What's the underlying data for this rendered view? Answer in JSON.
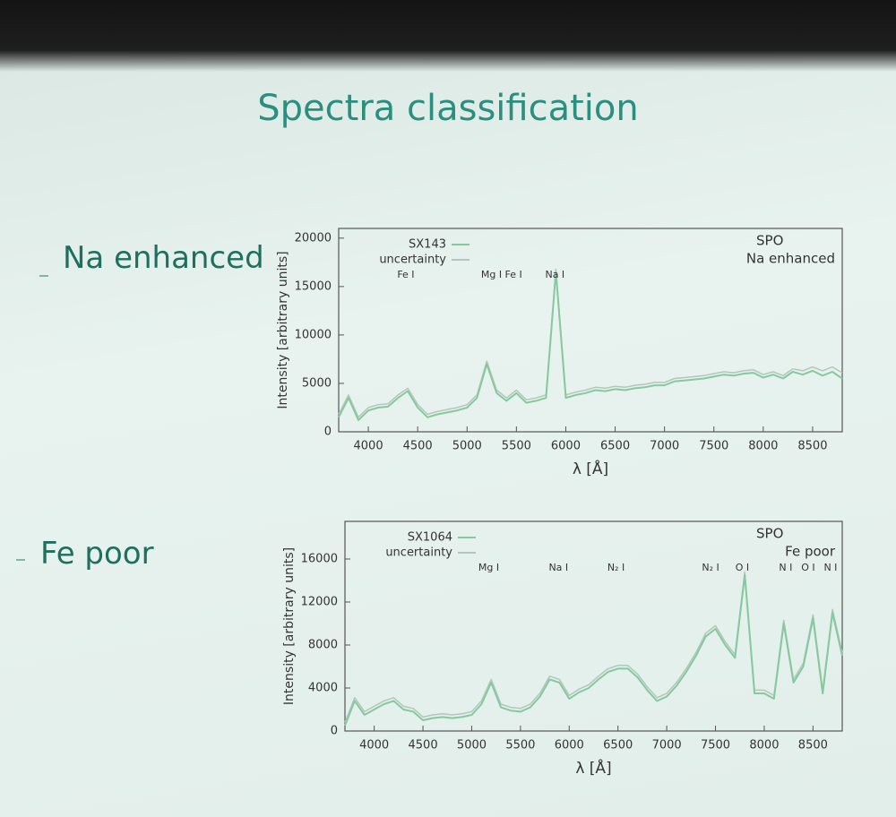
{
  "title": "Spectra classification",
  "bullets": [
    "Na enhanced",
    "Fe poor"
  ],
  "chart_data": [
    {
      "type": "line",
      "xlabel": "λ [Å]",
      "ylabel": "Intensity [arbitrary units]",
      "annotations": [
        "SPO",
        "Na enhanced"
      ],
      "line_labels": [
        {
          "text": "Fe I",
          "x": 4380
        },
        {
          "text": "Mg I Fe I",
          "x": 5350
        },
        {
          "text": "Na I",
          "x": 5890
        }
      ],
      "legend": "upper left",
      "xlim": [
        3700,
        8800
      ],
      "xticks": [
        4000,
        4500,
        5000,
        5500,
        6000,
        6500,
        7000,
        7500,
        8000,
        8500
      ],
      "ylim": [
        0,
        21000
      ],
      "yticks": [
        0,
        5000,
        10000,
        15000,
        20000
      ],
      "x": [
        3700,
        3800,
        3900,
        4000,
        4100,
        4200,
        4300,
        4400,
        4500,
        4600,
        4700,
        4800,
        4900,
        5000,
        5100,
        5200,
        5300,
        5400,
        5500,
        5600,
        5700,
        5800,
        5900,
        6000,
        6100,
        6200,
        6300,
        6400,
        6500,
        6600,
        6700,
        6800,
        6900,
        7000,
        7100,
        7200,
        7300,
        7400,
        7500,
        7600,
        7700,
        7800,
        7900,
        8000,
        8100,
        8200,
        8300,
        8400,
        8500,
        8600,
        8700,
        8800
      ],
      "series": [
        {
          "name": "SX143",
          "color": "#86c9a0",
          "values": [
            1500,
            3500,
            1200,
            2200,
            2500,
            2600,
            3500,
            4200,
            2500,
            1500,
            1800,
            2000,
            2200,
            2500,
            3500,
            7000,
            4000,
            3200,
            4000,
            3000,
            3200,
            3500,
            16500,
            3500,
            3800,
            4000,
            4300,
            4200,
            4400,
            4300,
            4500,
            4600,
            4800,
            4800,
            5200,
            5300,
            5400,
            5500,
            5700,
            5900,
            5800,
            6000,
            6100,
            5600,
            5900,
            5500,
            6200,
            5900,
            6300,
            5800,
            6200,
            5500
          ]
        },
        {
          "name": "uncertainty",
          "color": "#b3c6bb",
          "values": [
            1800,
            3800,
            1500,
            2500,
            2800,
            2900,
            3800,
            4500,
            2800,
            1800,
            2100,
            2300,
            2500,
            2800,
            3800,
            7300,
            4300,
            3500,
            4300,
            3300,
            3500,
            3800,
            16800,
            3800,
            4100,
            4300,
            4600,
            4500,
            4700,
            4600,
            4800,
            4900,
            5100,
            5100,
            5500,
            5600,
            5700,
            5800,
            6000,
            6200,
            6100,
            6300,
            6400,
            5900,
            6200,
            5800,
            6500,
            6300,
            6700,
            6300,
            6700,
            6100
          ]
        }
      ]
    },
    {
      "type": "line",
      "xlabel": "λ [Å]",
      "ylabel": "Intensity [arbitrary units]",
      "annotations": [
        "SPO",
        "Fe poor"
      ],
      "line_labels": [
        {
          "text": "Mg I",
          "x": 5175
        },
        {
          "text": "Na I",
          "x": 5890
        },
        {
          "text": "N₂ I",
          "x": 6480
        },
        {
          "text": "N₂ I",
          "x": 7450
        },
        {
          "text": "O I",
          "x": 7775
        },
        {
          "text": "N I",
          "x": 8220
        },
        {
          "text": "O I",
          "x": 8450
        },
        {
          "text": "N I",
          "x": 8680
        }
      ],
      "legend": "upper left",
      "xlim": [
        3700,
        8800
      ],
      "xticks": [
        4000,
        4500,
        5000,
        5500,
        6000,
        6500,
        7000,
        7500,
        8000,
        8500
      ],
      "ylim": [
        0,
        19500
      ],
      "yticks": [
        0,
        4000,
        8000,
        12000,
        16000
      ],
      "x": [
        3700,
        3800,
        3900,
        4000,
        4100,
        4200,
        4300,
        4400,
        4500,
        4600,
        4700,
        4800,
        4900,
        5000,
        5100,
        5200,
        5300,
        5400,
        5500,
        5600,
        5700,
        5800,
        5900,
        6000,
        6100,
        6200,
        6300,
        6400,
        6500,
        6600,
        6700,
        6800,
        6900,
        7000,
        7100,
        7200,
        7300,
        7400,
        7500,
        7600,
        7700,
        7800,
        7900,
        8000,
        8100,
        8200,
        8300,
        8400,
        8500,
        8600,
        8700,
        8800
      ],
      "series": [
        {
          "name": "SX1064",
          "color": "#86c9a0",
          "values": [
            500,
            2800,
            1500,
            2000,
            2500,
            2800,
            2000,
            1800,
            1000,
            1200,
            1300,
            1200,
            1300,
            1500,
            2500,
            4500,
            2200,
            1900,
            1800,
            2200,
            3200,
            4800,
            4500,
            3000,
            3600,
            4000,
            4800,
            5500,
            5800,
            5800,
            5000,
            3800,
            2800,
            3200,
            4200,
            5500,
            7000,
            8800,
            9500,
            8000,
            6800,
            14500,
            3500,
            3500,
            3000,
            10000,
            4500,
            6000,
            10500,
            3500,
            11000,
            7000
          ]
        },
        {
          "name": "uncertainty",
          "color": "#b3c6bb",
          "values": [
            800,
            3100,
            1800,
            2300,
            2800,
            3100,
            2300,
            2100,
            1300,
            1500,
            1600,
            1500,
            1600,
            1800,
            2800,
            4800,
            2500,
            2200,
            2100,
            2500,
            3500,
            5100,
            4800,
            3300,
            3900,
            4300,
            5100,
            5800,
            6100,
            6100,
            5300,
            4100,
            3100,
            3500,
            4500,
            5800,
            7300,
            9100,
            9800,
            8300,
            7100,
            14800,
            3800,
            3800,
            3300,
            10300,
            4800,
            6300,
            10800,
            3800,
            11300,
            7300
          ]
        }
      ]
    }
  ]
}
